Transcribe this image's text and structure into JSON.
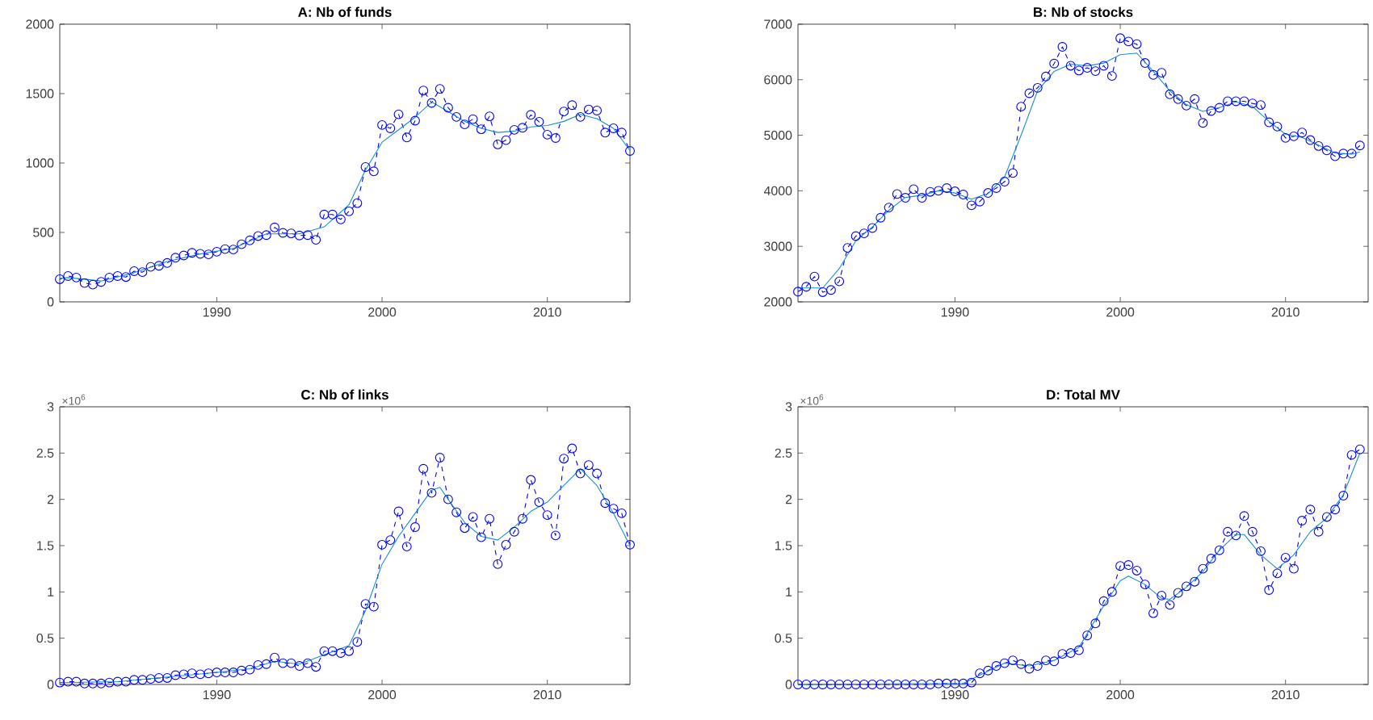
{
  "chart_data": [
    {
      "type": "line",
      "title": "A: Nb of funds",
      "xlim": [
        1980.5,
        2015
      ],
      "ylim": [
        0,
        2000
      ],
      "xticks": [
        1990,
        2000,
        2010
      ],
      "yticks": [
        0,
        500,
        1000,
        1500,
        2000
      ],
      "x": [
        1980.5,
        1981,
        1981.5,
        1982,
        1982.5,
        1983,
        1983.5,
        1984,
        1984.5,
        1985,
        1985.5,
        1986,
        1986.5,
        1987,
        1987.5,
        1988,
        1988.5,
        1989,
        1989.5,
        1990,
        1990.5,
        1991,
        1991.5,
        1992,
        1992.5,
        1993,
        1993.5,
        1994,
        1994.5,
        1995,
        1995.5,
        1996,
        1996.5,
        1997,
        1997.5,
        1998,
        1998.5,
        1999,
        1999.5,
        2000,
        2000.5,
        2001,
        2001.5,
        2002,
        2002.5,
        2003,
        2003.5,
        2004,
        2004.5,
        2005,
        2005.5,
        2006,
        2006.5,
        2007,
        2007.5,
        2008,
        2008.5,
        2009,
        2009.5,
        2010,
        2010.5,
        2011,
        2011.5,
        2012,
        2012.5,
        2013,
        2013.5,
        2014,
        2014.5,
        2015
      ],
      "series": [
        {
          "color": "#0000ff",
          "marker": "circle",
          "line_style": "dashed",
          "values": [
            163,
            186,
            175,
            136,
            124,
            144,
            175,
            186,
            179,
            221,
            214,
            252,
            260,
            280,
            318,
            334,
            353,
            346,
            342,
            361,
            380,
            377,
            415,
            443,
            474,
            481,
            536,
            497,
            493,
            478,
            481,
            447,
            629,
            629,
            594,
            652,
            711,
            971,
            940,
            1274,
            1250,
            1351,
            1184,
            1305,
            1522,
            1433,
            1534,
            1398,
            1332,
            1278,
            1316,
            1243,
            1336,
            1134,
            1165,
            1239,
            1254,
            1347,
            1297,
            1204,
            1180,
            1371,
            1417,
            1332,
            1386,
            1378,
            1219,
            1250,
            1219,
            1087
          ]
        },
        {
          "color": "#1a8fd0",
          "marker": "none",
          "line_style": "solid",
          "x": [
            1980.5,
            1981,
            1983,
            1985,
            1987,
            1989,
            1991,
            1993,
            1995,
            1996.5,
            1998,
            1999,
            2000,
            2001,
            2002,
            2003,
            2004,
            2005,
            2006,
            2007,
            2008,
            2009,
            2010,
            2011,
            2012,
            2013,
            2014,
            2015
          ],
          "values": [
            170,
            175,
            150,
            210,
            290,
            345,
            385,
            490,
            490,
            540,
            700,
            950,
            1150,
            1240,
            1330,
            1440,
            1370,
            1300,
            1250,
            1220,
            1230,
            1260,
            1270,
            1300,
            1350,
            1320,
            1250,
            1090
          ]
        }
      ]
    },
    {
      "type": "line",
      "title": "B: Nb of stocks",
      "xlim": [
        1980.5,
        2015
      ],
      "ylim": [
        2000,
        7000
      ],
      "xticks": [
        1990,
        2000,
        2010
      ],
      "yticks": [
        2000,
        3000,
        4000,
        5000,
        6000,
        7000
      ],
      "x": [
        1980.5,
        1981,
        1981.5,
        1982,
        1982.5,
        1983,
        1983.5,
        1984,
        1984.5,
        1985,
        1985.5,
        1986,
        1986.5,
        1987,
        1987.5,
        1988,
        1988.5,
        1989,
        1989.5,
        1990,
        1990.5,
        1991,
        1991.5,
        1992,
        1992.5,
        1993,
        1993.5,
        1994,
        1994.5,
        1995,
        1995.5,
        1996,
        1996.5,
        1997,
        1997.5,
        1998,
        1998.5,
        1999,
        1999.5,
        2000,
        2000.5,
        2001,
        2001.5,
        2002,
        2002.5,
        2003,
        2003.5,
        2004,
        2004.5,
        2005,
        2005.5,
        2006,
        2006.5,
        2007,
        2007.5,
        2008,
        2008.5,
        2009,
        2009.5,
        2010,
        2010.5,
        2011,
        2011.5,
        2012,
        2012.5,
        2013,
        2013.5,
        2014,
        2014.5
      ],
      "series": [
        {
          "color": "#0000ff",
          "marker": "circle",
          "line_style": "dashed",
          "values": [
            2184,
            2272,
            2456,
            2175,
            2214,
            2369,
            2971,
            3184,
            3233,
            3330,
            3515,
            3699,
            3942,
            3874,
            4029,
            3874,
            3981,
            4000,
            4049,
            3990,
            3932,
            3738,
            3806,
            3961,
            4049,
            4165,
            4320,
            5515,
            5757,
            5854,
            6058,
            6291,
            6592,
            6252,
            6165,
            6214,
            6155,
            6252,
            6068,
            6748,
            6689,
            6641,
            6301,
            6087,
            6126,
            5738,
            5651,
            5534,
            5651,
            5223,
            5437,
            5495,
            5612,
            5612,
            5612,
            5573,
            5544,
            5233,
            5155,
            4952,
            4981,
            5049,
            4913,
            4806,
            4728,
            4621,
            4670,
            4670,
            4816
          ]
        },
        {
          "color": "#1a8fd0",
          "marker": "none",
          "line_style": "solid",
          "x": [
            1980.5,
            1982,
            1983,
            1984,
            1985,
            1986,
            1987,
            1988,
            1989,
            1990,
            1991,
            1992,
            1993,
            1994,
            1995,
            1996,
            1997,
            1998,
            1999,
            2000,
            2001,
            2002,
            2003,
            2004,
            2005,
            2006,
            2007,
            2008,
            2009,
            2010,
            2011,
            2012,
            2013,
            2014,
            2014.5
          ],
          "values": [
            2250,
            2250,
            2600,
            3100,
            3350,
            3650,
            3880,
            3920,
            4000,
            3960,
            3850,
            3950,
            4250,
            5000,
            5800,
            6150,
            6280,
            6250,
            6300,
            6450,
            6480,
            6150,
            5800,
            5550,
            5430,
            5500,
            5600,
            5520,
            5250,
            5020,
            4960,
            4820,
            4680,
            4660,
            4700
          ]
        }
      ]
    },
    {
      "type": "line",
      "title": "C: Nb of links",
      "annotations": [
        "×10$^{6}$"
      ],
      "xlim": [
        1980.5,
        2015
      ],
      "ylim": [
        0,
        3
      ],
      "xticks": [
        1990,
        2000,
        2010
      ],
      "yticks": [
        0,
        0.5,
        1,
        1.5,
        2,
        2.5,
        3
      ],
      "x": [
        1980.5,
        1981,
        1981.5,
        1982,
        1982.5,
        1983,
        1983.5,
        1984,
        1984.5,
        1985,
        1985.5,
        1986,
        1986.5,
        1987,
        1987.5,
        1988,
        1988.5,
        1989,
        1989.5,
        1990,
        1990.5,
        1991,
        1991.5,
        1992,
        1992.5,
        1993,
        1993.5,
        1994,
        1994.5,
        1995,
        1995.5,
        1996,
        1996.5,
        1997,
        1997.5,
        1998,
        1998.5,
        1999,
        1999.5,
        2000,
        2000.5,
        2001,
        2001.5,
        2002,
        2002.5,
        2003,
        2003.5,
        2004,
        2004.5,
        2005,
        2005.5,
        2006,
        2006.5,
        2007,
        2007.5,
        2008,
        2008.5,
        2009,
        2009.5,
        2010,
        2010.5,
        2011,
        2011.5,
        2012,
        2012.5,
        2013,
        2013.5,
        2014,
        2014.5,
        2015
      ],
      "series": [
        {
          "color": "#0000ff",
          "marker": "circle",
          "line_style": "dashed",
          "values": [
            0.02,
            0.03,
            0.03,
            0.01,
            0.01,
            0.01,
            0.02,
            0.03,
            0.03,
            0.05,
            0.05,
            0.06,
            0.07,
            0.07,
            0.1,
            0.11,
            0.12,
            0.11,
            0.12,
            0.13,
            0.13,
            0.13,
            0.15,
            0.16,
            0.21,
            0.22,
            0.29,
            0.23,
            0.23,
            0.2,
            0.23,
            0.19,
            0.36,
            0.36,
            0.34,
            0.36,
            0.46,
            0.87,
            0.84,
            1.51,
            1.56,
            1.87,
            1.49,
            1.7,
            2.33,
            2.07,
            2.45,
            2.0,
            1.86,
            1.69,
            1.81,
            1.59,
            1.79,
            1.3,
            1.51,
            1.65,
            1.79,
            2.21,
            1.97,
            1.83,
            1.61,
            2.44,
            2.55,
            2.28,
            2.37,
            2.28,
            1.96,
            1.9,
            1.85,
            1.51
          ]
        },
        {
          "color": "#1a8fd0",
          "marker": "none",
          "line_style": "solid",
          "x": [
            1980.5,
            1984,
            1987,
            1990,
            1992,
            1993.5,
            1995,
            1996.5,
            1998,
            1999,
            2000,
            2001,
            2002,
            2003,
            2003.5,
            2004,
            2005,
            2006,
            2007,
            2008,
            2009,
            2010,
            2011,
            2012,
            2013,
            2014,
            2015
          ],
          "values": [
            0.02,
            0.03,
            0.08,
            0.13,
            0.17,
            0.25,
            0.22,
            0.32,
            0.42,
            0.8,
            1.3,
            1.6,
            1.85,
            2.1,
            2.13,
            2.0,
            1.75,
            1.6,
            1.56,
            1.7,
            1.87,
            1.97,
            2.15,
            2.33,
            2.15,
            1.85,
            1.5
          ]
        }
      ]
    },
    {
      "type": "line",
      "title": "D: Total MV",
      "annotations": [
        "×10$^{6}$"
      ],
      "xlim": [
        1980.5,
        2015
      ],
      "ylim": [
        0,
        3
      ],
      "xticks": [
        1990,
        2000,
        2010
      ],
      "yticks": [
        0,
        0.5,
        1,
        1.5,
        2,
        2.5,
        3
      ],
      "x": [
        1980.5,
        1981,
        1981.5,
        1982,
        1982.5,
        1983,
        1983.5,
        1984,
        1984.5,
        1985,
        1985.5,
        1986,
        1986.5,
        1987,
        1987.5,
        1988,
        1988.5,
        1989,
        1989.5,
        1990,
        1990.5,
        1991,
        1991.5,
        1992,
        1992.5,
        1993,
        1993.5,
        1994,
        1994.5,
        1995,
        1995.5,
        1996,
        1996.5,
        1997,
        1997.5,
        1998,
        1998.5,
        1999,
        1999.5,
        2000,
        2000.5,
        2001,
        2001.5,
        2002,
        2002.5,
        2003,
        2003.5,
        2004,
        2004.5,
        2005,
        2005.5,
        2006,
        2006.5,
        2007,
        2007.5,
        2008,
        2008.5,
        2009,
        2009.5,
        2010,
        2010.5,
        2011,
        2011.5,
        2012,
        2012.5,
        2013,
        2013.5,
        2014,
        2014.5
      ],
      "series": [
        {
          "color": "#0000ff",
          "marker": "circle",
          "line_style": "dashed",
          "values": [
            0,
            0,
            0,
            0,
            0,
            0,
            0,
            0,
            0,
            0,
            0,
            0,
            0,
            0,
            0,
            0,
            0,
            0.01,
            0.01,
            0.01,
            0.01,
            0.02,
            0.12,
            0.15,
            0.2,
            0.23,
            0.26,
            0.22,
            0.17,
            0.2,
            0.26,
            0.25,
            0.33,
            0.34,
            0.37,
            0.53,
            0.66,
            0.9,
            1.0,
            1.28,
            1.29,
            1.23,
            1.08,
            0.77,
            0.96,
            0.86,
            0.99,
            1.06,
            1.11,
            1.25,
            1.36,
            1.45,
            1.65,
            1.61,
            1.82,
            1.65,
            1.44,
            1.02,
            1.2,
            1.37,
            1.25,
            1.77,
            1.89,
            1.65,
            1.81,
            1.89,
            2.04,
            2.48,
            2.54
          ]
        },
        {
          "color": "#1a8fd0",
          "marker": "none",
          "line_style": "solid",
          "x": [
            1980.5,
            1990.5,
            1991.5,
            1993,
            1994.5,
            1996,
            1997.5,
            1999,
            2000,
            2000.5,
            2001.5,
            2002.5,
            2003,
            2004,
            2005,
            2006,
            2007,
            2007.5,
            2008.5,
            2009.5,
            2010.5,
            2011.5,
            2012.5,
            2013.5,
            2014.5
          ],
          "values": [
            0,
            0.01,
            0.1,
            0.23,
            0.2,
            0.26,
            0.4,
            0.85,
            1.12,
            1.17,
            1.08,
            0.93,
            0.92,
            1.05,
            1.22,
            1.45,
            1.62,
            1.62,
            1.4,
            1.25,
            1.4,
            1.65,
            1.8,
            2.05,
            2.5
          ]
        }
      ]
    }
  ]
}
